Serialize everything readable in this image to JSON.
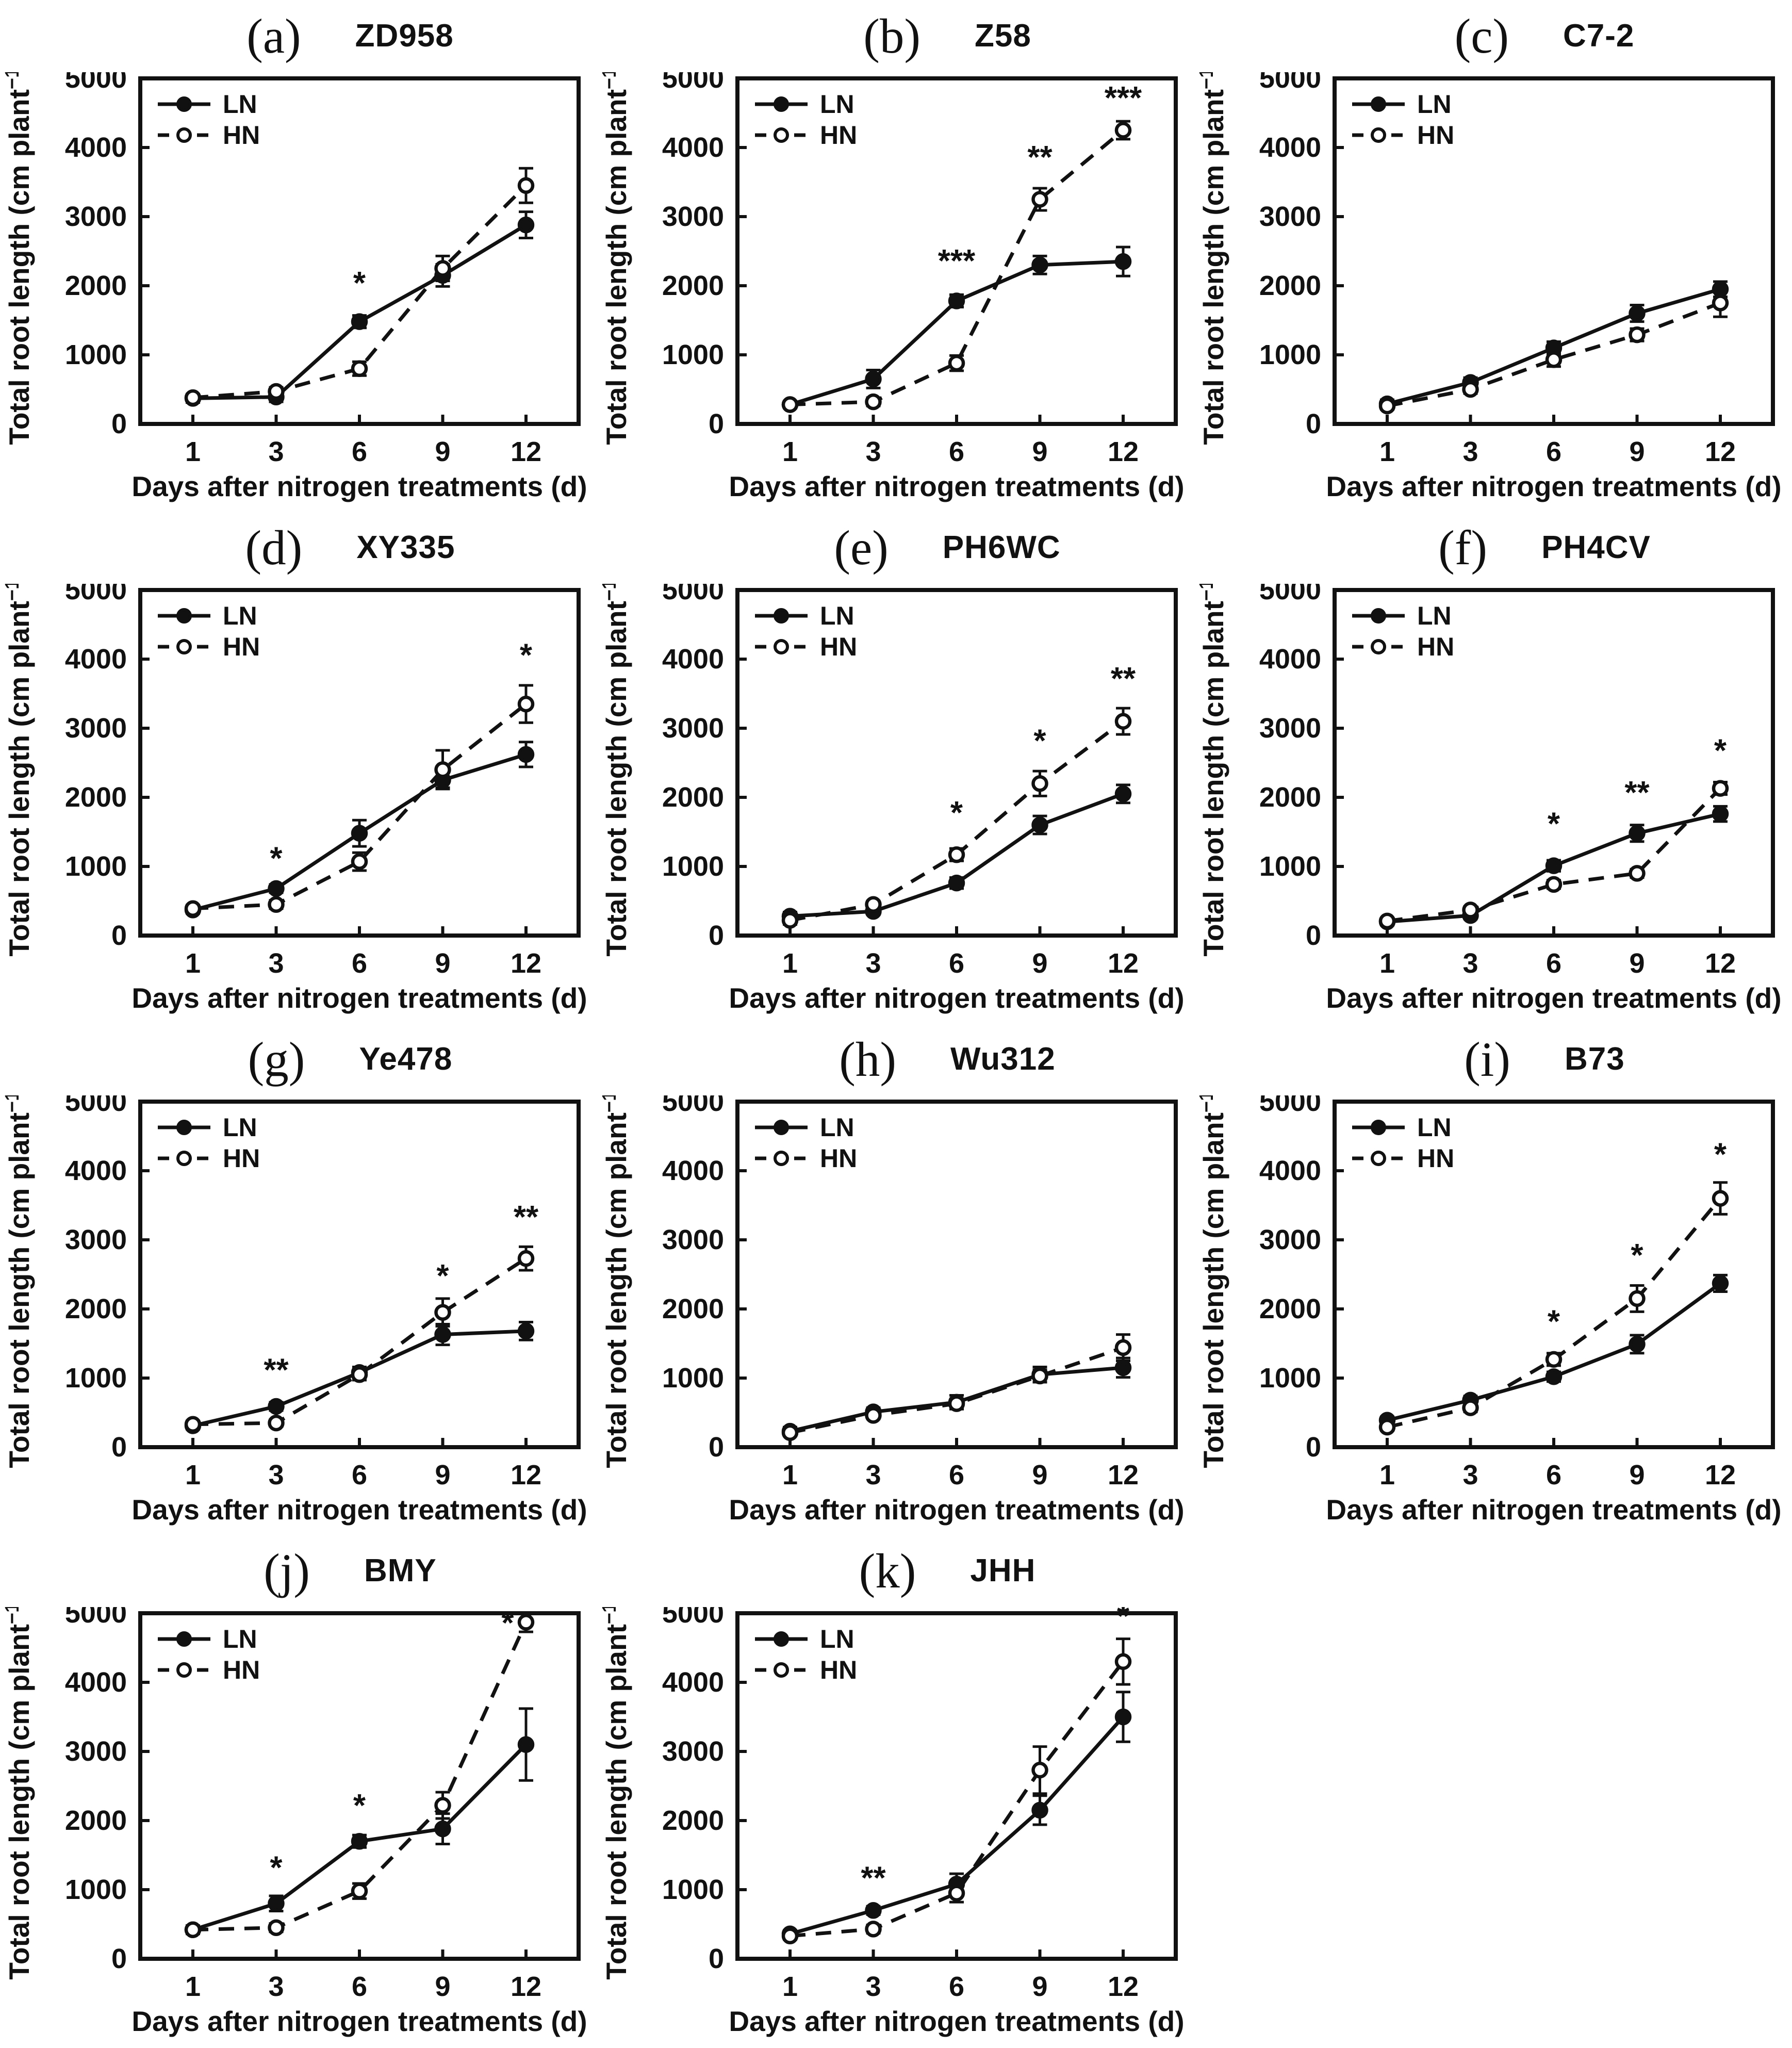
{
  "figure": {
    "ylabel_prefix": "Total root length (cm plant",
    "ylabel_sup": "−1",
    "ylabel_suffix": ")",
    "xlabel": "Days after nitrogen treatments (d)",
    "x_tick_labels": [
      "1",
      "3",
      "6",
      "9",
      "12"
    ],
    "y_ticks": [
      0,
      1000,
      2000,
      3000,
      4000,
      5000
    ],
    "ylim": [
      0,
      5000
    ],
    "grid": "off",
    "legend_position": "top-left-inside",
    "legend": [
      {
        "name": "LN",
        "line": "solid",
        "marker": "filled-circle"
      },
      {
        "name": "HN",
        "line": "dashed",
        "marker": "open-circle"
      }
    ],
    "colors": {
      "ink": "#111111",
      "background": "#ffffff"
    }
  },
  "chart_data": [
    {
      "letter": "(a)",
      "title": "ZD958",
      "type": "line",
      "x": [
        1,
        3,
        6,
        9,
        12
      ],
      "series": [
        {
          "name": "LN",
          "values": [
            370,
            390,
            1480,
            2150,
            2880
          ],
          "errors": [
            60,
            70,
            90,
            160,
            190
          ]
        },
        {
          "name": "HN",
          "values": [
            380,
            470,
            800,
            2250,
            3450
          ],
          "errors": [
            50,
            60,
            100,
            180,
            250
          ]
        }
      ],
      "annotations": [
        {
          "x": 2,
          "y": 1880,
          "text": "*"
        }
      ]
    },
    {
      "letter": "(b)",
      "title": "Z58",
      "type": "line",
      "x": [
        1,
        3,
        6,
        9,
        12
      ],
      "series": [
        {
          "name": "LN",
          "values": [
            280,
            650,
            1780,
            2300,
            2350
          ],
          "errors": [
            50,
            130,
            90,
            130,
            210
          ]
        },
        {
          "name": "HN",
          "values": [
            280,
            320,
            880,
            3250,
            4250
          ],
          "errors": [
            40,
            60,
            110,
            160,
            130
          ]
        }
      ],
      "annotations": [
        {
          "x": 2,
          "y": 2200,
          "text": "***"
        },
        {
          "x": 3,
          "y": 3700,
          "text": "**"
        },
        {
          "x": 4,
          "y": 4560,
          "text": "***"
        }
      ]
    },
    {
      "letter": "(c)",
      "title": "C7-2",
      "type": "line",
      "x": [
        1,
        3,
        6,
        9,
        12
      ],
      "series": [
        {
          "name": "LN",
          "values": [
            290,
            600,
            1100,
            1600,
            1950
          ],
          "errors": [
            60,
            70,
            90,
            120,
            110
          ]
        },
        {
          "name": "HN",
          "values": [
            260,
            500,
            930,
            1290,
            1750
          ],
          "errors": [
            50,
            60,
            100,
            90,
            200
          ]
        }
      ],
      "annotations": []
    },
    {
      "letter": "(d)",
      "title": "XY335",
      "type": "line",
      "x": [
        1,
        3,
        6,
        9,
        12
      ],
      "series": [
        {
          "name": "LN",
          "values": [
            370,
            680,
            1480,
            2250,
            2620
          ],
          "errors": [
            50,
            60,
            190,
            110,
            180
          ]
        },
        {
          "name": "HN",
          "values": [
            390,
            450,
            1070,
            2400,
            3350
          ],
          "errors": [
            50,
            60,
            130,
            280,
            270
          ]
        }
      ],
      "annotations": [
        {
          "x": 1,
          "y": 960,
          "text": "*"
        },
        {
          "x": 4,
          "y": 3900,
          "text": "*"
        }
      ]
    },
    {
      "letter": "(e)",
      "title": "PH6WC",
      "type": "line",
      "x": [
        1,
        3,
        6,
        9,
        12
      ],
      "series": [
        {
          "name": "LN",
          "values": [
            280,
            350,
            760,
            1600,
            2050
          ],
          "errors": [
            60,
            50,
            80,
            130,
            130
          ]
        },
        {
          "name": "HN",
          "values": [
            220,
            450,
            1170,
            2200,
            3100
          ],
          "errors": [
            60,
            50,
            90,
            180,
            190
          ]
        }
      ],
      "annotations": [
        {
          "x": 2,
          "y": 1620,
          "text": "*"
        },
        {
          "x": 3,
          "y": 2660,
          "text": "*"
        },
        {
          "x": 4,
          "y": 3560,
          "text": "**"
        }
      ]
    },
    {
      "letter": "(f)",
      "title": "PH4CV",
      "type": "line",
      "x": [
        1,
        3,
        6,
        9,
        12
      ],
      "series": [
        {
          "name": "LN",
          "values": [
            200,
            290,
            1010,
            1480,
            1760
          ],
          "errors": [
            50,
            50,
            80,
            120,
            110
          ]
        },
        {
          "name": "HN",
          "values": [
            210,
            370,
            740,
            900,
            2130
          ],
          "errors": [
            40,
            50,
            60,
            60,
            90
          ]
        }
      ],
      "annotations": [
        {
          "x": 2,
          "y": 1460,
          "text": "*"
        },
        {
          "x": 3,
          "y": 1910,
          "text": "**"
        },
        {
          "x": 4,
          "y": 2520,
          "text": "*"
        }
      ]
    },
    {
      "letter": "(g)",
      "title": "Ye478",
      "type": "line",
      "x": [
        1,
        3,
        6,
        9,
        12
      ],
      "series": [
        {
          "name": "LN",
          "values": [
            310,
            590,
            1080,
            1630,
            1680
          ],
          "errors": [
            50,
            60,
            80,
            150,
            130
          ]
        },
        {
          "name": "HN",
          "values": [
            330,
            350,
            1050,
            1950,
            2730
          ],
          "errors": [
            50,
            50,
            80,
            200,
            170
          ]
        }
      ],
      "annotations": [
        {
          "x": 1,
          "y": 960,
          "text": "**"
        },
        {
          "x": 3,
          "y": 2320,
          "text": "*"
        },
        {
          "x": 4,
          "y": 3170,
          "text": "**"
        }
      ]
    },
    {
      "letter": "(h)",
      "title": "Wu312",
      "type": "line",
      "x": [
        1,
        3,
        6,
        9,
        12
      ],
      "series": [
        {
          "name": "LN",
          "values": [
            230,
            510,
            650,
            1050,
            1150
          ],
          "errors": [
            60,
            60,
            100,
            110,
            140
          ]
        },
        {
          "name": "HN",
          "values": [
            210,
            460,
            630,
            1030,
            1440
          ],
          "errors": [
            40,
            50,
            70,
            90,
            190
          ]
        }
      ],
      "annotations": []
    },
    {
      "letter": "(i)",
      "title": "B73",
      "type": "line",
      "x": [
        1,
        3,
        6,
        9,
        12
      ],
      "series": [
        {
          "name": "LN",
          "values": [
            390,
            680,
            1020,
            1490,
            2370
          ],
          "errors": [
            50,
            60,
            70,
            130,
            120
          ]
        },
        {
          "name": "HN",
          "values": [
            290,
            570,
            1270,
            2150,
            3600
          ],
          "errors": [
            50,
            60,
            90,
            190,
            230
          ]
        }
      ],
      "annotations": [
        {
          "x": 2,
          "y": 1660,
          "text": "*"
        },
        {
          "x": 3,
          "y": 2620,
          "text": "*"
        },
        {
          "x": 4,
          "y": 4080,
          "text": "*"
        }
      ]
    },
    {
      "letter": "(j)",
      "title": "BMY",
      "type": "line",
      "x": [
        1,
        3,
        6,
        9,
        12
      ],
      "series": [
        {
          "name": "LN",
          "values": [
            420,
            800,
            1700,
            1880,
            3100
          ],
          "errors": [
            60,
            110,
            90,
            220,
            520
          ]
        },
        {
          "name": "HN",
          "values": [
            420,
            450,
            980,
            2220,
            4870
          ],
          "errors": [
            50,
            60,
            110,
            190,
            140
          ]
        }
      ],
      "annotations": [
        {
          "x": 1,
          "y": 1160,
          "text": "*"
        },
        {
          "x": 2,
          "y": 2060,
          "text": "*"
        },
        {
          "x": 3.78,
          "y": 4700,
          "text": "*"
        }
      ]
    },
    {
      "letter": "(k)",
      "title": "JHH",
      "type": "line",
      "x": [
        1,
        3,
        6,
        9,
        12
      ],
      "series": [
        {
          "name": "LN",
          "values": [
            360,
            700,
            1080,
            2150,
            3500
          ],
          "errors": [
            50,
            60,
            150,
            210,
            360
          ]
        },
        {
          "name": "HN",
          "values": [
            330,
            430,
            950,
            2730,
            4300
          ],
          "errors": [
            50,
            60,
            130,
            340,
            330
          ]
        }
      ],
      "annotations": [
        {
          "x": 1,
          "y": 1010,
          "text": "**"
        },
        {
          "x": 4,
          "y": 4800,
          "text": "*"
        }
      ]
    }
  ]
}
